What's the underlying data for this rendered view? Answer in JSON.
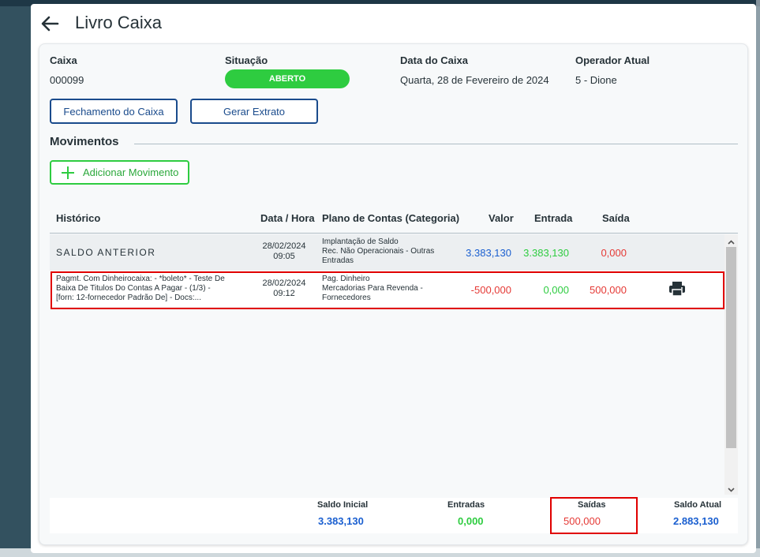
{
  "modal": {
    "title": "Livro Caixa"
  },
  "info": {
    "caixa_label": "Caixa",
    "caixa_value": "000099",
    "situacao_label": "Situação",
    "situacao_value": "ABERTO",
    "data_label": "Data do Caixa",
    "data_value": "Quarta, 28 de Fevereiro de 2024",
    "operador_label": "Operador Atual",
    "operador_value": "5 - Dione"
  },
  "actions": {
    "fechamento": "Fechamento do Caixa",
    "extrato": "Gerar Extrato"
  },
  "movimentos": {
    "title": "Movimentos",
    "add_label": "Adicionar Movimento"
  },
  "table": {
    "headers": {
      "historico": "Histórico",
      "data_hora": "Data / Hora",
      "plano": "Plano de Contas (Categoria)",
      "valor": "Valor",
      "entrada": "Entrada",
      "saida": "Saída"
    },
    "rows": [
      {
        "historico": "SALDO ANTERIOR",
        "data": "28/02/2024",
        "hora": "09:05",
        "plano_1": "Implantação de Saldo",
        "plano_2": "Rec. Não Operacionais - Outras",
        "plano_3": "Entradas",
        "valor": "3.383,130",
        "entrada": "3.383,130",
        "saida": "0,000"
      },
      {
        "historico_1": "Pagmt. Com Dinheirocaixa: - *boleto* - Teste De",
        "historico_2": "Baixa De Titulos Do Contas A Pagar - (1/3) -",
        "historico_3": "[forn: 12-fornecedor Padrão De] - Docs:...",
        "data": "28/02/2024",
        "hora": "09:12",
        "plano_1": "Pag. Dinheiro",
        "plano_2": "Mercadorias Para Revenda -",
        "plano_3": "Fornecedores",
        "valor": "-500,000",
        "entrada": "0,000",
        "saida": "500,000",
        "action_icon": "print-icon"
      }
    ]
  },
  "totals": {
    "saldo_inicial_label": "Saldo Inicial",
    "saldo_inicial": "3.383,130",
    "entradas_label": "Entradas",
    "entradas": "0,000",
    "saidas_label": "Saídas",
    "saidas": "500,000",
    "saldo_atual_label": "Saldo Atual",
    "saldo_atual": "2.883,130"
  },
  "colors": {
    "accent_blue": "#1a4b8c",
    "success_green": "#2ecc40",
    "danger_red": "#e53935",
    "highlight_red": "#e00000"
  }
}
